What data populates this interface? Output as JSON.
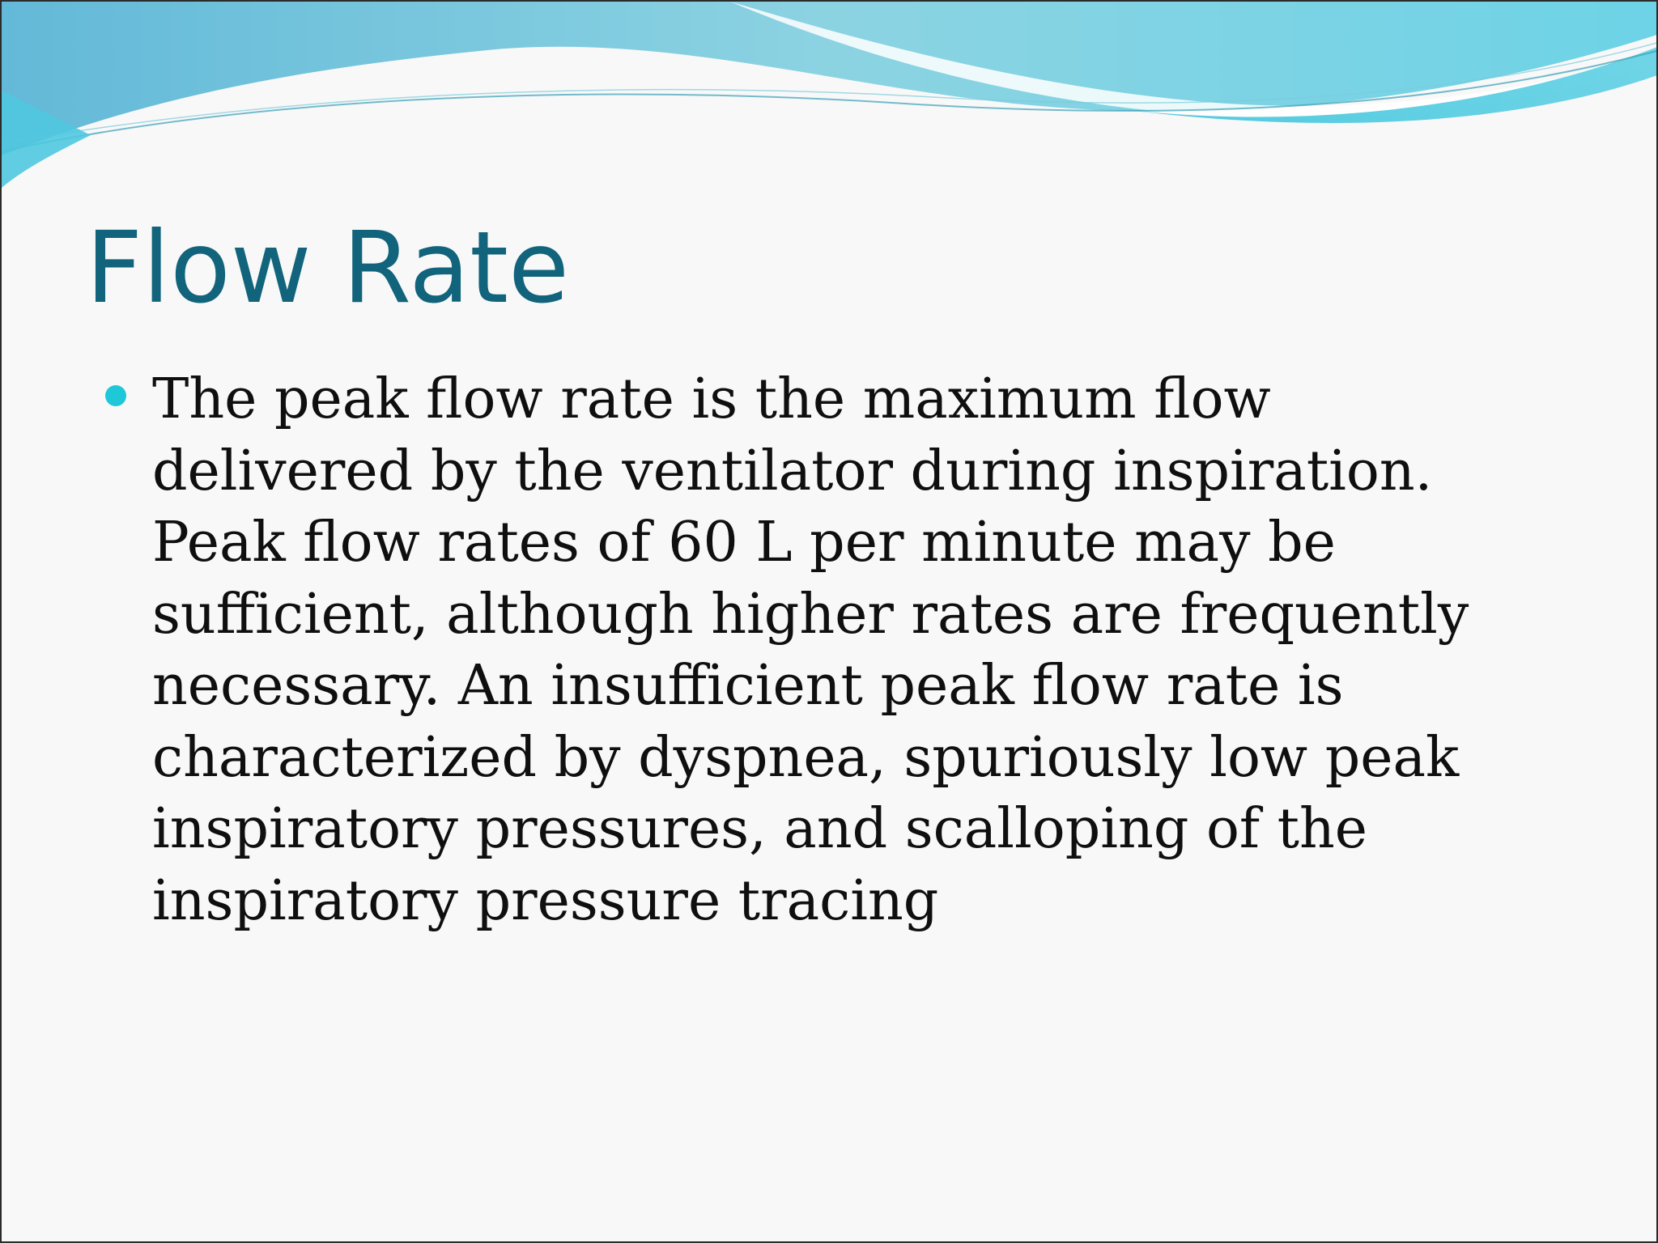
{
  "slide": {
    "title": "Flow Rate",
    "bullets": [
      {
        "text": "The peak flow rate is the maximum flow delivered by the ventilator during inspiration. Peak flow rates of 60 L per minute may be sufficient, although higher rates are frequently necessary. An insufficient peak flow rate is characterized by dyspnea, spuriously low peak inspiratory pressures, and scalloping of the inspiratory pressure tracing"
      }
    ]
  },
  "colors": {
    "title": "#11647c",
    "bullet": "#1ec8d8",
    "wave_light": "#9fdbe8",
    "wave_mid": "#5ec7dd",
    "wave_dark": "#3fb0cf"
  }
}
